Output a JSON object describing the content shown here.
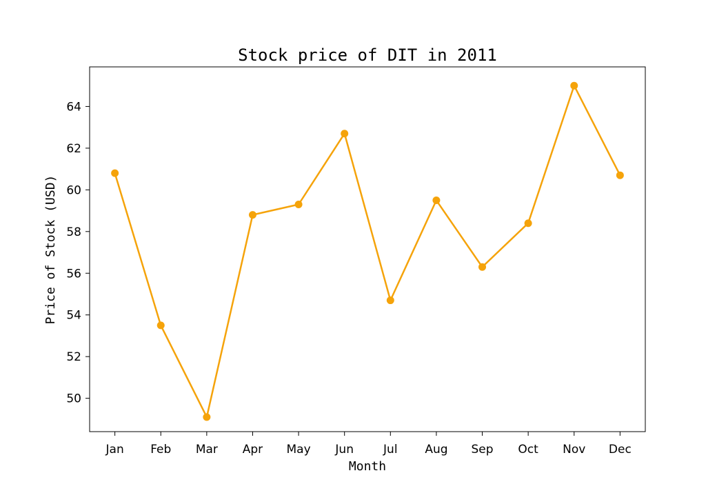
{
  "chart_data": {
    "type": "line",
    "title": "Stock price of DIT in 2011",
    "xlabel": "Month",
    "ylabel": "Price of Stock (USD)",
    "categories": [
      "Jan",
      "Feb",
      "Mar",
      "Apr",
      "May",
      "Jun",
      "Jul",
      "Aug",
      "Sep",
      "Oct",
      "Nov",
      "Dec"
    ],
    "series": [
      {
        "values": [
          60.8,
          53.5,
          49.1,
          58.8,
          59.3,
          62.7,
          54.7,
          59.5,
          56.3,
          58.4,
          65.0,
          60.7
        ],
        "color": "#f5a30a",
        "marker": "circle"
      }
    ],
    "ylim": [
      48.4,
      65.9
    ],
    "yticks": [
      50,
      52,
      54,
      56,
      58,
      60,
      62,
      64
    ],
    "grid": false,
    "legend": "none"
  }
}
